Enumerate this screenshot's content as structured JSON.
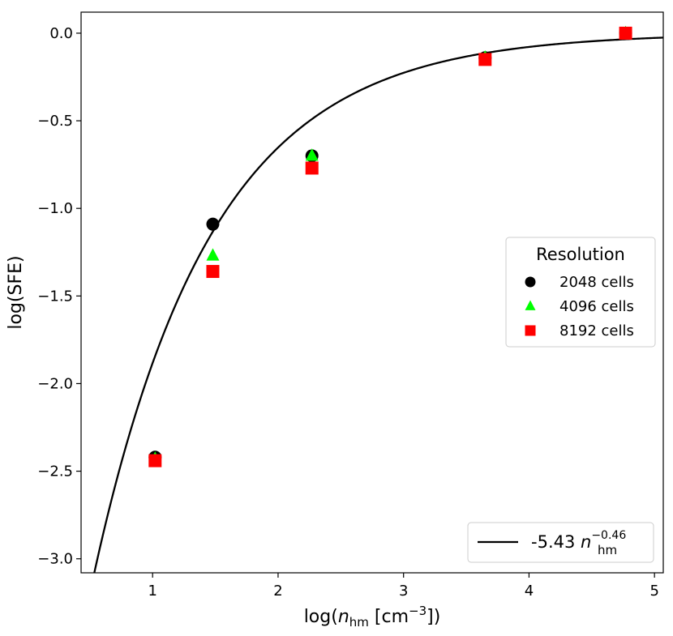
{
  "chart_data": {
    "type": "scatter",
    "xlabel": "log(n_hm [cm^-3])",
    "xlabel_parts": {
      "prefix": "log(",
      "var": "n",
      "sub": "hm",
      "mid": " [cm",
      "sup": "−3",
      "suffix": "])"
    },
    "ylabel": "log(SFE)",
    "xlim": [
      0.43,
      5.07
    ],
    "ylim": [
      -3.08,
      0.12
    ],
    "xticks": [
      1,
      2,
      3,
      4,
      5
    ],
    "xtick_labels": [
      "1",
      "2",
      "3",
      "4",
      "5"
    ],
    "yticks": [
      0.0,
      -0.5,
      -1.0,
      -1.5,
      -2.0,
      -2.5,
      -3.0
    ],
    "ytick_labels": [
      "0.0",
      "−0.5",
      "−1.0",
      "−1.5",
      "−2.0",
      "−2.5",
      "−3.0"
    ],
    "grid": false,
    "legend": {
      "title": "Resolution",
      "placement": "center-right",
      "entries": [
        "2048 cells",
        "4096 cells",
        "8192 cells"
      ]
    },
    "series": [
      {
        "name": "2048 cells",
        "marker": "circle",
        "color": "#000000",
        "x": [
          1.02,
          1.48,
          2.27,
          3.65,
          4.77
        ],
        "y": [
          -2.42,
          -1.09,
          -0.7,
          -0.14,
          0.0
        ]
      },
      {
        "name": "4096 cells",
        "marker": "triangle",
        "color": "#00ff00",
        "x": [
          1.02,
          1.48,
          2.27,
          3.65,
          4.77
        ],
        "y": [
          -2.43,
          -1.27,
          -0.7,
          -0.14,
          0.0
        ]
      },
      {
        "name": "8192 cells",
        "marker": "square",
        "color": "#ff0000",
        "x": [
          1.02,
          1.48,
          2.27,
          3.65,
          4.77
        ],
        "y": [
          -2.44,
          -1.36,
          -0.77,
          -0.15,
          0.0
        ]
      }
    ],
    "fit": {
      "label_coef": "-5.43",
      "label_var": "n",
      "label_sub": "hm",
      "label_exp": "−0.46",
      "A": -5.43,
      "B": -0.46,
      "color": "#000000",
      "legend_placement": "lower-right"
    }
  }
}
